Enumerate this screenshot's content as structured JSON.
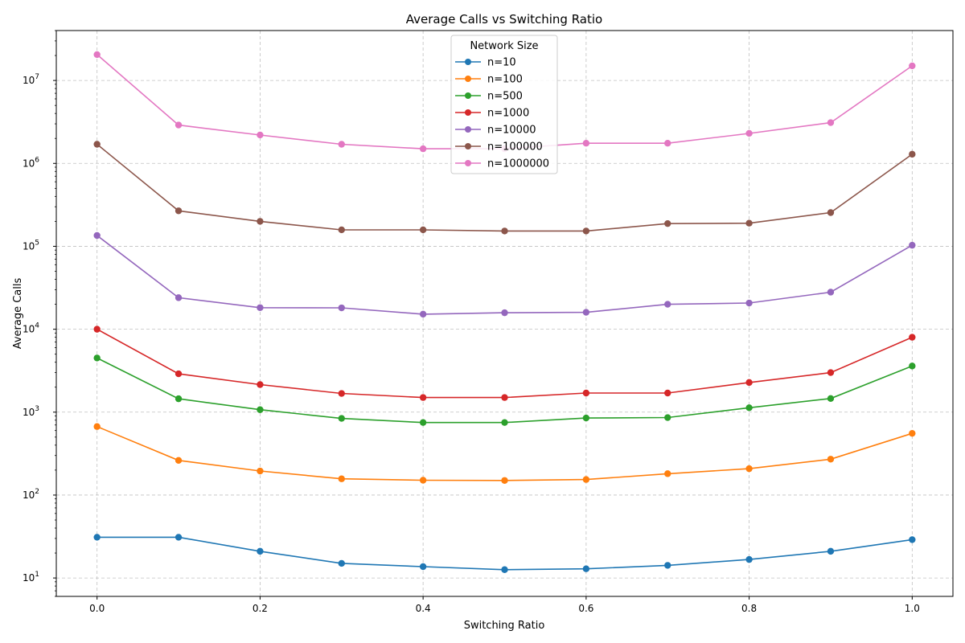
{
  "chart_data": {
    "type": "line",
    "title": "Average Calls vs Switching Ratio",
    "xlabel": "Switching Ratio",
    "ylabel": "Average Calls",
    "yscale": "log",
    "xlim": [
      -0.05,
      1.05
    ],
    "ylim": [
      6,
      40000000
    ],
    "grid": true,
    "grid_style": "dashed",
    "legend_title": "Network Size",
    "legend_position": "top-center",
    "x_ticks": [
      0.0,
      0.2,
      0.4,
      0.6,
      0.8,
      1.0
    ],
    "x_tick_labels": [
      "0.0",
      "0.2",
      "0.4",
      "0.6",
      "0.8",
      "1.0"
    ],
    "y_ticks": [
      10,
      100,
      1000,
      10000,
      100000,
      1000000,
      10000000
    ],
    "y_tick_exponents": [
      "1",
      "2",
      "3",
      "4",
      "5",
      "6",
      "7"
    ],
    "y_tick_base": "10",
    "x": [
      0.0,
      0.1,
      0.2,
      0.3,
      0.4,
      0.5,
      0.6,
      0.7,
      0.8,
      0.9,
      1.0
    ],
    "series": [
      {
        "name": "n=10",
        "color": "#1f77b4",
        "values": [
          31,
          31,
          21,
          15,
          13.7,
          12.6,
          12.9,
          14.2,
          16.7,
          21,
          29
        ]
      },
      {
        "name": "n=100",
        "color": "#ff7f0e",
        "values": [
          670,
          262,
          195,
          157,
          151,
          150,
          154,
          181,
          208,
          271,
          555
        ]
      },
      {
        "name": "n=500",
        "color": "#2ca02c",
        "values": [
          4500,
          1450,
          1070,
          840,
          750,
          750,
          850,
          860,
          1130,
          1460,
          3600
        ]
      },
      {
        "name": "n=1000",
        "color": "#d62728",
        "values": [
          10000,
          2900,
          2150,
          1680,
          1500,
          1500,
          1700,
          1700,
          2280,
          3000,
          8000
        ]
      },
      {
        "name": "n=10000",
        "color": "#9467bd",
        "values": [
          135000,
          24000,
          18200,
          18100,
          15200,
          15800,
          16000,
          20000,
          20700,
          28000,
          103000
        ]
      },
      {
        "name": "n=100000",
        "color": "#8c564b",
        "values": [
          1700000,
          268000,
          200000,
          158000,
          158000,
          153000,
          153000,
          188000,
          190000,
          255000,
          1290000
        ]
      },
      {
        "name": "n=1000000",
        "color": "#e377c2",
        "values": [
          20500000,
          2900000,
          2200000,
          1700000,
          1500000,
          1500000,
          1750000,
          1750000,
          2300000,
          3100000,
          15000000
        ]
      }
    ]
  }
}
